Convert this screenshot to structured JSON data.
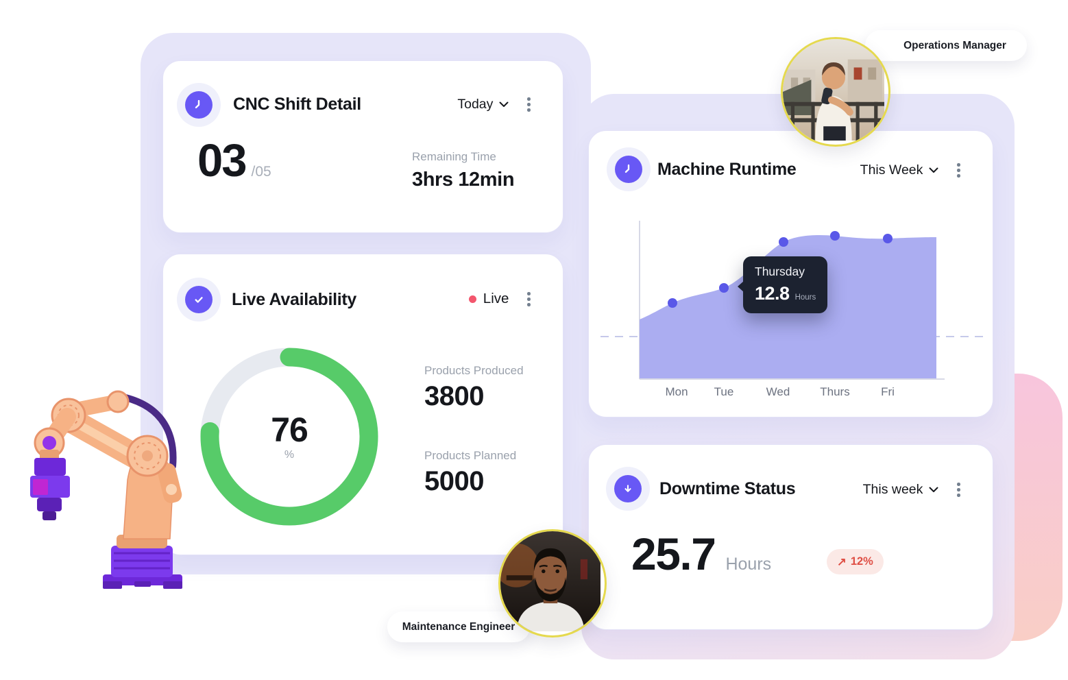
{
  "cards": {
    "cnc_shift": {
      "title": "CNC Shift Detail",
      "period": "Today",
      "icon": "clock-icon",
      "count": "03",
      "count_total": "/05",
      "remaining_label": "Remaining Time",
      "remaining_value": "3hrs 12min"
    },
    "live_availability": {
      "title": "Live Availability",
      "icon": "check-icon",
      "status_label": "Live",
      "percent": "76",
      "percent_symbol": "%",
      "produced_label": "Products Produced",
      "produced_value": "3800",
      "planned_label": "Products Planned",
      "planned_value": "5000"
    },
    "machine_runtime": {
      "title": "Machine Runtime",
      "period": "This Week",
      "icon": "clock-icon",
      "tooltip": {
        "day": "Thursday",
        "value": "12.8",
        "unit": "Hours"
      }
    },
    "downtime_status": {
      "title": "Downtime Status",
      "period": "This week",
      "icon": "arrow-down-circle-icon",
      "hours_value": "25.7",
      "hours_unit": "Hours",
      "change_arrow": "↗",
      "change": "12%"
    }
  },
  "labels": {
    "operations_manager": "Operations Manager",
    "maintenance_engineer": "Maintenance Engineer"
  },
  "chart_data": {
    "type": "area",
    "title": "Machine Runtime",
    "categories": [
      "Mon",
      "Tue",
      "Wed",
      "Thurs",
      "Fri"
    ],
    "series": [
      {
        "name": "Machine Runtime",
        "values": [
          6.8,
          8.1,
          12.2,
          12.8,
          12.6
        ]
      }
    ],
    "unit": "Hours",
    "ylim": [
      0,
      14.5
    ],
    "grid": false,
    "dashed_reference_line_hours": 3.8,
    "highlight": {
      "day": "Thursday",
      "value": 12.8,
      "unit": "Hours"
    },
    "legend": "none"
  },
  "icons": {
    "header_menu": "kebab-menu-icon",
    "dropdown": "chevron-down-icon",
    "live_indicator": "red-dot",
    "change_direction": "up-right-arrow"
  },
  "colors": {
    "accent_purple": "#6858F5",
    "panel_lavender": "#E6E5F9",
    "donut_green": "#57CB69",
    "donut_track": "#E7EAF0",
    "area_fill": "#ABADF1",
    "data_point": "#5A58E8",
    "live_red": "#F3566D",
    "change_red": "#DF4F45",
    "change_badge_bg": "#FBE9E6",
    "tooltip_bg": "#1C2230",
    "avatar_ring_yellow": "#E5D94E",
    "pink_blob": "#F8C9D3"
  }
}
